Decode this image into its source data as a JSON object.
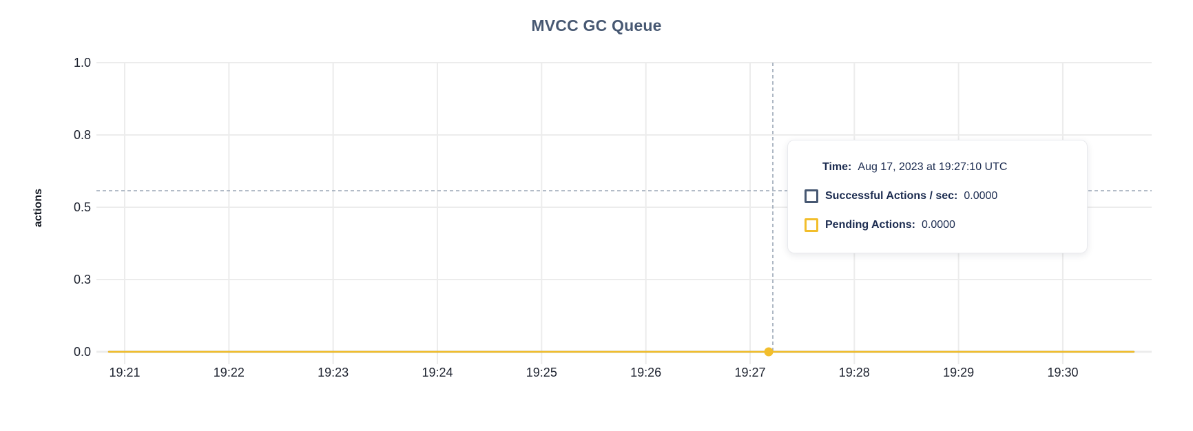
{
  "title": "MVCC GC Queue",
  "chart_data": {
    "type": "line",
    "title": "MVCC GC Queue",
    "xlabel": "",
    "ylabel": "actions",
    "ylim": [
      0,
      1.0
    ],
    "grid": true,
    "legend_position": "tooltip-only",
    "yticks": [
      {
        "value": 0.0,
        "label": "0.0"
      },
      {
        "value": 0.25,
        "label": "0.3"
      },
      {
        "value": 0.5,
        "label": "0.5"
      },
      {
        "value": 0.75,
        "label": "0.8"
      },
      {
        "value": 1.0,
        "label": "1.0"
      }
    ],
    "categories": [
      "19:21",
      "19:22",
      "19:23",
      "19:24",
      "19:25",
      "19:26",
      "19:27",
      "19:28",
      "19:29",
      "19:30"
    ],
    "series": [
      {
        "name": "Successful Actions / sec",
        "color": "#475872",
        "values": [
          0,
          0,
          0,
          0,
          0,
          0,
          0,
          0,
          0,
          0
        ]
      },
      {
        "name": "Pending Actions",
        "color": "#F2BE2C",
        "values": [
          0,
          0,
          0,
          0,
          0,
          0,
          0,
          0,
          0,
          0
        ]
      }
    ],
    "hover_point": {
      "time": "19:27:10",
      "series": "Pending Actions",
      "value": 0.0
    }
  },
  "tooltip": {
    "time_label": "Time:",
    "time_value": "Aug 17, 2023 at 19:27:10 UTC",
    "rows": [
      {
        "label": "Successful Actions / sec:",
        "value": "0.0000",
        "color": "#475872"
      },
      {
        "label": "Pending Actions:",
        "value": "0.0000",
        "color": "#F2BE2C"
      }
    ]
  },
  "colors": {
    "title": "#475872",
    "tick_text": "#1c212e",
    "tooltip_text": "#1c2c50",
    "gridline": "#ececec",
    "axis_line": "#ececec",
    "crosshair": "#9aa6b6",
    "series_successful": "#475872",
    "series_pending": "#F2BE2C"
  }
}
